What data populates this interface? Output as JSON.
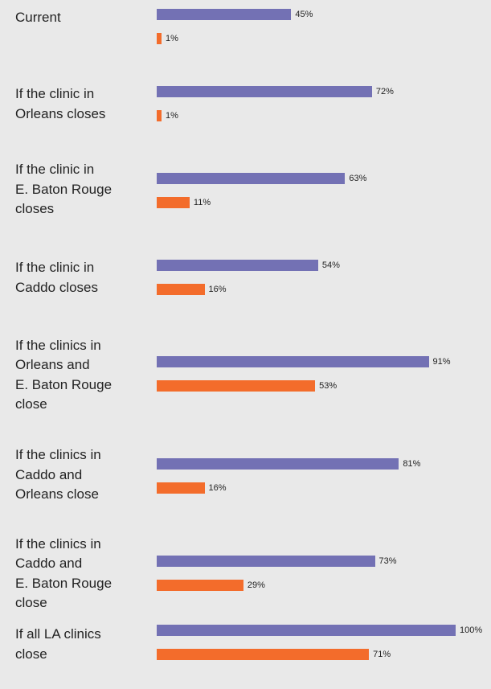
{
  "chart_data": {
    "type": "bar",
    "orientation": "horizontal",
    "categories": [
      "Current",
      "If the clinic in\nOrleans closes",
      "If the clinic in\nE. Baton Rouge\ncloses",
      "If the clinic in\nCaddo closes",
      "If the clinics in\nOrleans and\nE. Baton Rouge\nclose",
      "If the clinics in\nCaddo and\nOrleans close",
      "If the clinics in\nCaddo and\nE. Baton Rouge\nclose",
      "If all LA clinics\nclose"
    ],
    "series": [
      {
        "values": [
          45,
          72,
          63,
          54,
          91,
          81,
          73,
          100
        ],
        "color": "#7371b4"
      },
      {
        "values": [
          1,
          1,
          11,
          16,
          53,
          16,
          29,
          71
        ],
        "color": "#f36c2b"
      }
    ],
    "value_suffix": "%",
    "xlim": [
      0,
      100
    ],
    "grid": false
  }
}
